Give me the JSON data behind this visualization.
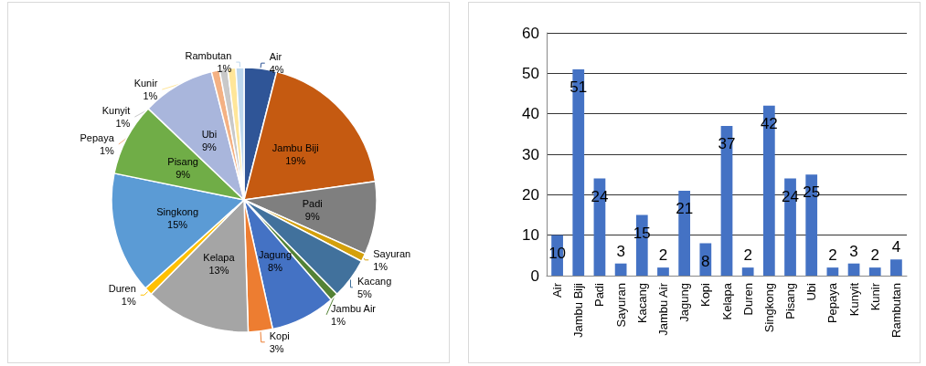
{
  "chart_data": [
    {
      "type": "pie",
      "categories": [
        "Air",
        "Jambu Biji",
        "Padi",
        "Sayuran",
        "Kacang",
        "Jambu Air",
        "Jagung",
        "Kopi",
        "Kelapa",
        "Duren",
        "Singkong",
        "Pisang",
        "Ubi",
        "Pepaya",
        "Kunyit",
        "Kunir",
        "Rambutan"
      ],
      "values": [
        4,
        19,
        9,
        1,
        5,
        1,
        8,
        3,
        13,
        1,
        15,
        9,
        9,
        1,
        1,
        1,
        1
      ],
      "value_labels": [
        "4%",
        "19%",
        "9%",
        "1%",
        "5%",
        "1%",
        "8%",
        "3%",
        "13%",
        "1%",
        "15%",
        "9%",
        "9%",
        "1%",
        "1%",
        "1%",
        "1%"
      ],
      "colors": [
        "#2f5597",
        "#c55a11",
        "#7f7f7f",
        "#d4a00b",
        "#41719c",
        "#548235",
        "#4472c4",
        "#ed7d31",
        "#a5a5a5",
        "#ffc000",
        "#5b9bd5",
        "#70ad47",
        "#a9b6dc",
        "#f4b183",
        "#c9c9c9",
        "#ffe699",
        "#bdd7ee"
      ],
      "legend": false
    },
    {
      "type": "bar",
      "categories": [
        "Air",
        "Jambu Biji",
        "Padi",
        "Sayuran",
        "Kacang",
        "Jambu Air",
        "Jagung",
        "Kopi",
        "Kelapa",
        "Duren",
        "Singkong",
        "Pisang",
        "Ubi",
        "Pepaya",
        "Kunyit",
        "Kunir",
        "Rambutan"
      ],
      "values": [
        10,
        51,
        24,
        3,
        15,
        2,
        21,
        8,
        37,
        2,
        42,
        24,
        25,
        2,
        3,
        2,
        4
      ],
      "color": "#4472c4",
      "ylim": [
        0,
        60
      ],
      "yticks": [
        0,
        10,
        20,
        30,
        40,
        50,
        60
      ],
      "grid": "y",
      "data_labels": true,
      "legend": false
    }
  ]
}
